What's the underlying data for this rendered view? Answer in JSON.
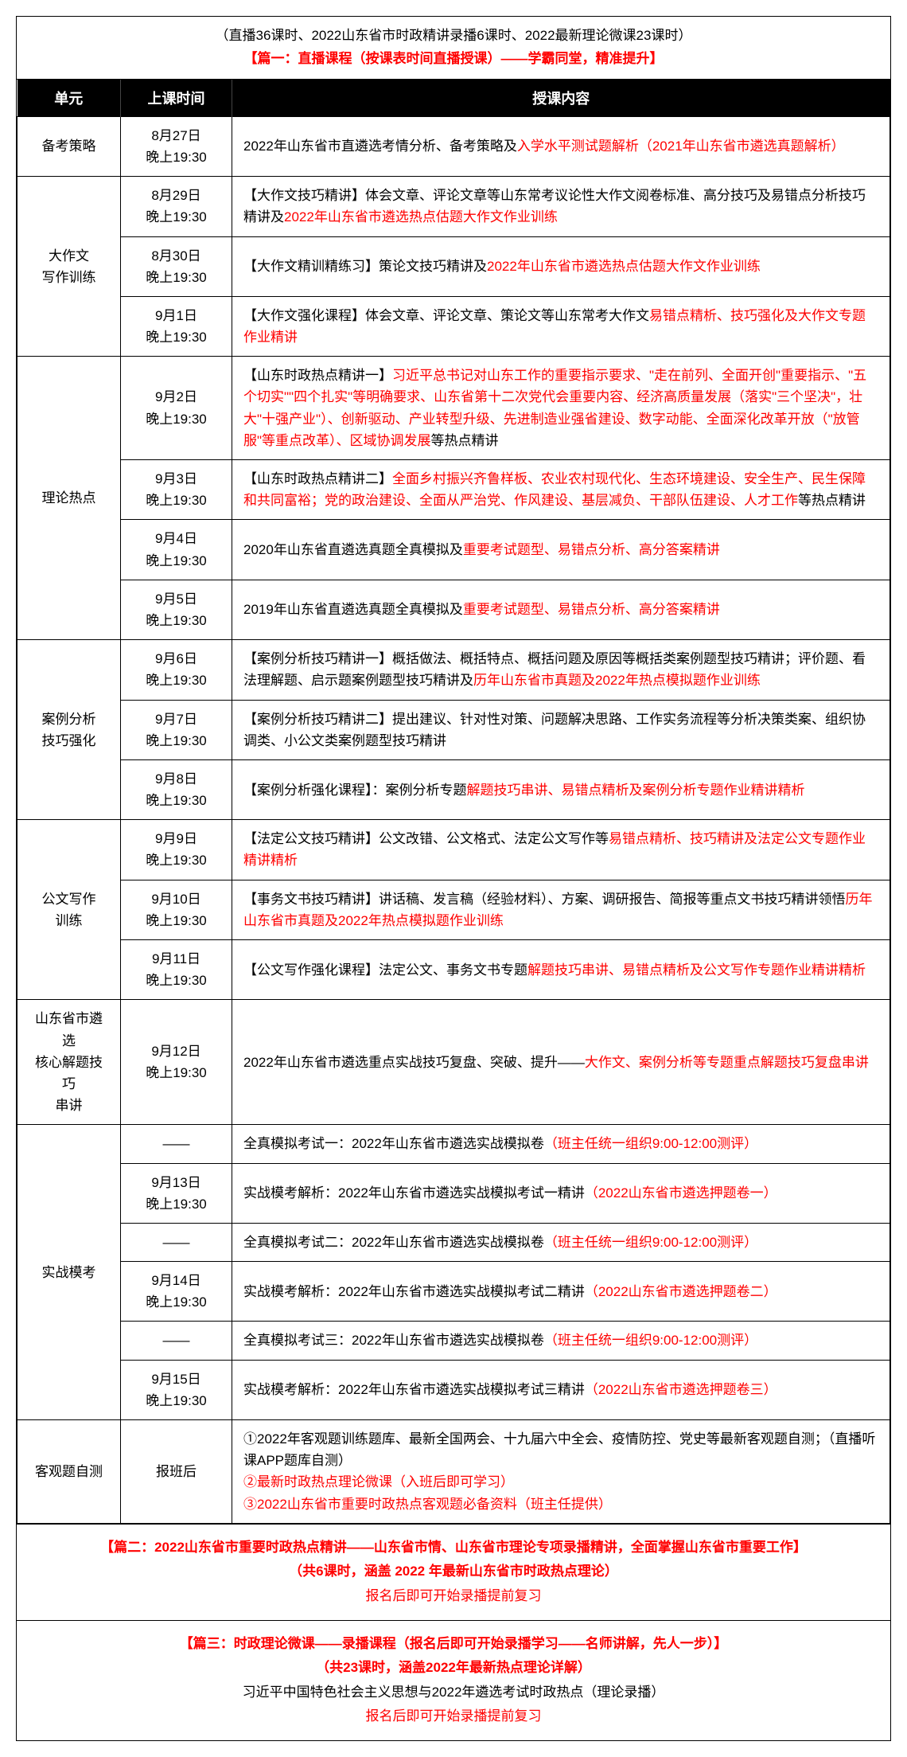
{
  "header": {
    "line1": "（直播36课时、2022山东省市时政精讲录播6课时、2022最新理论微课23课时）",
    "line2": "【篇一：直播课程（按课表时间直播授课）——学霸同堂，精准提升】"
  },
  "table": {
    "headers": [
      "单元",
      "上课时间",
      "授课内容"
    ]
  },
  "units": [
    {
      "name": "备考策略",
      "rows": [
        {
          "time": "8月27日<br>晚上19:30",
          "content": "2022年山东省市直遴选考情分析、备考策略及<span class='red'>入学水平测试题解析（2021年山东省市遴选真题解析）</span>"
        }
      ]
    },
    {
      "name": "大作文<br>写作训练",
      "rows": [
        {
          "time": "8月29日<br>晚上19:30",
          "content": "【大作文技巧精讲】体会文章、评论文章等山东常考议论性大作文阅卷标准、高分技巧及易错点分析技巧精讲及<span class='red'>2022年山东省市遴选热点估题大作文作业训练</span>"
        },
        {
          "time": "8月30日<br>晚上19:30",
          "content": "【大作文精训精练习】策论文技巧精讲及<span class='red'>2022年山东省市遴选热点估题大作文作业训练</span>"
        },
        {
          "time": "9月1日<br>晚上19:30",
          "content": "【大作文强化课程】体会文章、评论文章、策论文等山东常考大作文<span class='red'>易错点精析、技巧强化及大作文专题作业精讲</span>"
        }
      ]
    },
    {
      "name": "理论热点",
      "rows": [
        {
          "time": "9月2日<br>晚上19:30",
          "content": "【山东时政热点精讲一】<span class='red'>习近平总书记对山东工作的重要指示要求、\"走在前列、全面开创\"重要指示、\"五个切实\"\"四个扎实\"等明确要求、山东省第十二次党代会重要内容、经济高质量发展（落实\"三个坚决\"，壮大\"十强产业\"）、创新驱动、产业转型升级、先进制造业强省建设、数字动能、全面深化改革开放（\"放管服\"等重点改革）、区域协调发展</span>等热点精讲"
        },
        {
          "time": "9月3日<br>晚上19:30",
          "content": "【山东时政热点精讲二】<span class='red'>全面乡村振兴齐鲁样板、农业农村现代化、生态环境建设、安全生产、民生保障和共同富裕；党的政治建设、全面从严治党、作风建设、基层减负、干部队伍建设、人才工作</span>等热点精讲"
        },
        {
          "time": "9月4日<br>晚上19:30",
          "content": "2020年山东省直遴选真题全真模拟及<span class='red'>重要考试题型、易错点分析、高分答案精讲</span>"
        },
        {
          "time": "9月5日<br>晚上19:30",
          "content": "2019年山东省直遴选真题全真模拟及<span class='red'>重要考试题型、易错点分析、高分答案精讲</span>"
        }
      ]
    },
    {
      "name": "案例分析<br>技巧强化",
      "rows": [
        {
          "time": "9月6日<br>晚上19:30",
          "content": "【案例分析技巧精讲一】概括做法、概括特点、概括问题及原因等概括类案例题型技巧精讲；评价题、看法理解题、启示题案例题型技巧精讲及<span class='red'>历年山东省市真题及2022年热点模拟题作业训练</span>"
        },
        {
          "time": "9月7日<br>晚上19:30",
          "content": "【案例分析技巧精讲二】提出建议、针对性对策、问题解决思路、工作实务流程等分析决策类案、组织协调类、小公文类案例题型技巧精讲"
        },
        {
          "time": "9月8日<br>晚上19:30",
          "content": "【案例分析强化课程】：案例分析专题<span class='red'>解题技巧串讲、易错点精析及案例分析专题作业精讲精析</span>"
        }
      ]
    },
    {
      "name": "公文写作<br>训练",
      "rows": [
        {
          "time": "9月9日<br>晚上19:30",
          "content": "【法定公文技巧精讲】公文改错、公文格式、法定公文写作等<span class='red'>易错点精析、技巧精讲及法定公文专题作业精讲精析</span>"
        },
        {
          "time": "9月10日<br>晚上19:30",
          "content": "【事务文书技巧精讲】讲话稿、发言稿（经验材料）、方案、调研报告、简报等重点文书技巧精讲领悟<span class='red'>历年山东省市真题及2022年热点模拟题作业训练</span>"
        },
        {
          "time": "9月11日<br>晚上19:30",
          "content": "【公文写作强化课程】法定公文、事务文书专题<span class='red'>解题技巧串讲、易错点精析及公文写作专题作业精讲精析</span>"
        }
      ]
    },
    {
      "name": "山东省市遴选<br>核心解题技巧<br>串讲",
      "rows": [
        {
          "time": "9月12日<br>晚上19:30",
          "content": "2022年山东省市遴选重点实战技巧复盘、突破、提升——<span class='red'>大作文、案例分析等专题重点解题技巧复盘串讲</span>"
        }
      ]
    },
    {
      "name": "实战模考",
      "rows": [
        {
          "time": "——",
          "content": "全真模拟考试一：2022年山东省市遴选实战模拟卷<span class='red'>（班主任统一组织9:00-12:00测评）</span>"
        },
        {
          "time": "9月13日<br>晚上19:30",
          "content": "实战模考解析：2022年山东省市遴选实战模拟考试一精讲<span class='red'>（2022山东省市遴选押题卷一）</span>"
        },
        {
          "time": "——",
          "content": "全真模拟考试二：2022年山东省市遴选实战模拟卷<span class='red'>（班主任统一组织9:00-12:00测评）</span>"
        },
        {
          "time": "9月14日<br>晚上19:30",
          "content": "实战模考解析：2022年山东省市遴选实战模拟考试二精讲<span class='red'>（2022山东省市遴选押题卷二）</span>"
        },
        {
          "time": "——",
          "content": "全真模拟考试三：2022年山东省市遴选实战模拟卷<span class='red'>（班主任统一组织9:00-12:00测评）</span>"
        },
        {
          "time": "9月15日<br>晚上19:30",
          "content": "实战模考解析：2022年山东省市遴选实战模拟考试三精讲<span class='red'>（2022山东省市遴选押题卷三）</span>"
        }
      ]
    },
    {
      "name": "客观题自测",
      "rows": [
        {
          "time": "报班后",
          "content": "①2022年客观题训练题库、最新全国两会、十九届六中全会、疫情防控、党史等最新客观题自测；（直播听课APP题库自测）<br><span class='red'>②最新时政热点理论微课（入班后即可学习）<br>③2022山东省市重要时政热点客观题必备资料（班主任提供）</span>"
        }
      ]
    }
  ],
  "footer2": {
    "line1": "【篇二：2022山东省市重要时政热点精讲——山东省市情、山东省市理论专项录播精讲，全面掌握山东省市重要工作】",
    "line2": "（共6课时，涵盖 2022 年最新山东省市时政热点理论）",
    "line3": "报名后即可开始录播提前复习"
  },
  "footer3": {
    "line1": "【篇三：时政理论微课——录播课程（报名后即可开始录播学习——名师讲解，先人一步）】",
    "line2": "（共23课时，涵盖2022年最新热点理论详解）",
    "line3": "习近平中国特色社会主义思想与2022年遴选考试时政热点（理论录播）",
    "line4": "报名后即可开始录播提前复习"
  }
}
